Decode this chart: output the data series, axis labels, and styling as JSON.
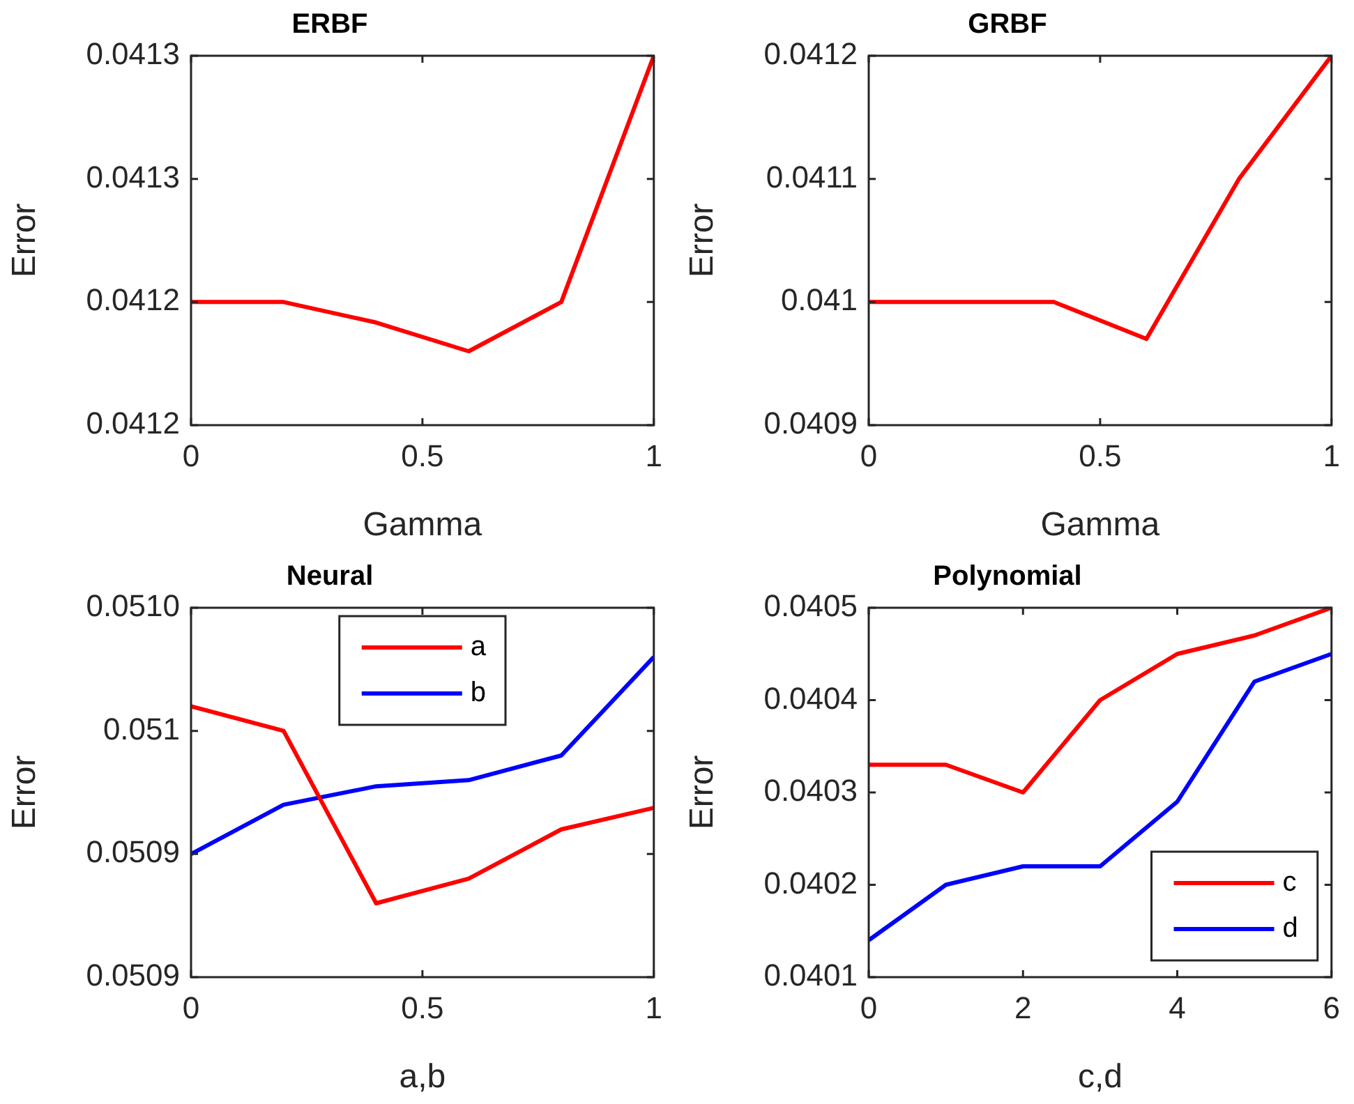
{
  "chart_data": [
    {
      "type": "line",
      "title": "ERBF",
      "xlabel": "Gamma",
      "ylabel": "Error",
      "x": [
        0,
        0.2,
        0.4,
        0.6,
        0.8,
        1
      ],
      "marker": "none",
      "legend": false,
      "xlim": [
        0,
        1
      ],
      "xticks": [
        0,
        0.5,
        1
      ],
      "ylim": [
        0.0412,
        0.04129
      ],
      "yticks": [
        {
          "value": 0.0412,
          "label": "0.0412"
        },
        {
          "value": 0.04123,
          "label": "0.0412"
        },
        {
          "value": 0.04126,
          "label": "0.0413"
        },
        {
          "value": 0.04129,
          "label": "0.0413"
        }
      ],
      "series": [
        {
          "color": "#ff0000",
          "values": [
            0.04123,
            0.04123,
            0.041225,
            0.041218,
            0.04123,
            0.04129
          ]
        }
      ]
    },
    {
      "type": "line",
      "title": "GRBF",
      "xlabel": "Gamma",
      "ylabel": "Error",
      "x": [
        0,
        0.2,
        0.4,
        0.6,
        0.8,
        1
      ],
      "marker": "none",
      "legend": false,
      "xlim": [
        0,
        1
      ],
      "xticks": [
        0,
        0.5,
        1
      ],
      "ylim": [
        0.0409,
        0.0412
      ],
      "yticks": [
        0.0409,
        0.041,
        0.0411,
        0.0412
      ],
      "series": [
        {
          "color": "#ff0000",
          "values": [
            0.041,
            0.041,
            0.041,
            0.04097,
            0.0411,
            0.0412
          ]
        }
      ]
    },
    {
      "type": "line",
      "title": "Neural",
      "xlabel": "a,b",
      "ylabel": "Error",
      "x": [
        0,
        0.2,
        0.4,
        0.6,
        0.8,
        1
      ],
      "marker": "none",
      "legend": "top",
      "xlim": [
        0,
        1
      ],
      "xticks": [
        0,
        0.5,
        1
      ],
      "ylim": [
        0.05088,
        0.051
      ],
      "yticks": [
        {
          "value": 0.05088,
          "label": "0.0509"
        },
        {
          "value": 0.05092,
          "label": "0.0509"
        },
        {
          "value": 0.05096,
          "label": "0.051"
        },
        {
          "value": 0.051,
          "label": "0.0510"
        }
      ],
      "series": [
        {
          "name": "a",
          "color": "#ff0000",
          "values": [
            0.050968,
            0.05096,
            0.050904,
            0.050912,
            0.050928,
            0.050935
          ]
        },
        {
          "name": "b",
          "color": "#0000ff",
          "values": [
            0.05092,
            0.050936,
            0.050942,
            0.050944,
            0.050952,
            0.050984
          ]
        }
      ]
    },
    {
      "type": "line",
      "title": "Polynomial",
      "xlabel": "c,d",
      "ylabel": "Error",
      "x": [
        0,
        1,
        2,
        3,
        4,
        5,
        6
      ],
      "marker": "none",
      "legend": "bottom right",
      "xlim": [
        0,
        6
      ],
      "xticks": [
        0,
        2,
        4,
        6
      ],
      "ylim": [
        0.0401,
        0.0405
      ],
      "yticks": [
        0.0401,
        0.0402,
        0.0403,
        0.0404,
        0.0405
      ],
      "series": [
        {
          "name": "c",
          "color": "#ff0000",
          "values": [
            0.04033,
            0.04033,
            0.0403,
            0.0404,
            0.04045,
            0.04047,
            0.0405
          ]
        },
        {
          "name": "d",
          "color": "#0000ff",
          "values": [
            0.04014,
            0.0402,
            0.04022,
            0.04022,
            0.04029,
            0.04042,
            0.04045
          ]
        }
      ]
    }
  ]
}
